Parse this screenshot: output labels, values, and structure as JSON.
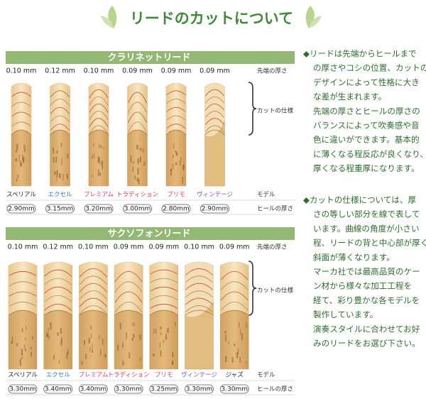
{
  "header": {
    "title": "リードのカットについて"
  },
  "clarinet": {
    "title": "クラリネットリード",
    "tip_label": "先端の厚さ",
    "cut_label": "カットの仕様",
    "model_label": "モデル",
    "heel_label": "ヒールの厚さ",
    "reeds": [
      {
        "tip": "0.10 mm",
        "model": "スペリアル",
        "color": "#222222",
        "heel": "2.90mm"
      },
      {
        "tip": "0.12 mm",
        "model": "エクセル",
        "color": "#3a6fc0",
        "heel": "3.15mm"
      },
      {
        "tip": "0.10 mm",
        "model": "プレミアム",
        "color": "#d8407a",
        "heel": "3.20mm"
      },
      {
        "tip": "0.09 mm",
        "model": "トラディション",
        "color": "#d83a3a",
        "heel": "3.00mm"
      },
      {
        "tip": "0.09 mm",
        "model": "プリモ",
        "color": "#e0407a",
        "heel": "2.80mm"
      },
      {
        "tip": "0.09 mm",
        "model": "ヴィンテージ",
        "color": "#8a4ab0",
        "heel": "2.90mm"
      }
    ]
  },
  "saxophone": {
    "title": "サクソフォンリード",
    "tip_label": "先端の厚さ",
    "cut_label": "カットの仕様",
    "model_label": "モデル",
    "heel_label": "ヒールの厚さ",
    "reeds": [
      {
        "tip": "0.10 mm",
        "model": "スペリアル",
        "color": "#222222",
        "heel": "3.30mm"
      },
      {
        "tip": "0.12 mm",
        "model": "エクセル",
        "color": "#3a6fc0",
        "heel": "3.40mm"
      },
      {
        "tip": "0.10 mm",
        "model": "プレミアム",
        "color": "#d8407a",
        "heel": "3.40mm"
      },
      {
        "tip": "0.09 mm",
        "model": "トラディション",
        "color": "#d83a3a",
        "heel": "3.30mm"
      },
      {
        "tip": "0.09 mm",
        "model": "プリモ",
        "color": "#e0407a",
        "heel": "3.25mm"
      },
      {
        "tip": "0.10 mm",
        "model": "ヴィンテージ",
        "color": "#8a4ab0",
        "heel": "3.30mm"
      },
      {
        "tip": "0.09 mm",
        "model": "ジャズ",
        "color": "#222222",
        "heel": "3.30mm"
      }
    ]
  },
  "description": {
    "blocks": [
      [
        "◆リードは先端からヒールまで",
        "の厚さやコシの位置、カットの",
        "デザインによって性格に大き",
        "な差が生まれます。",
        "先端の厚さとヒールの厚さの",
        "バランスによって吹奏感や音",
        "色に違いができます。基本的",
        "に薄くなる程反応が良くなり、",
        "厚くなる程重厚になります。"
      ],
      [
        "◆カットの仕様については、厚",
        "さの等しい部分を線で表して",
        "います。曲線の角度が小さい",
        "程、リードの背と中心部が厚く",
        "斜面が薄くなります。",
        "マーカ社では最高品質のケー",
        "ン材から様々な加工工程を",
        "経て、彩り豊かな各モデルを",
        "製作しています。",
        "演奏スタイルに合わせてお好",
        "みのリードをお選び下さい。"
      ]
    ]
  }
}
